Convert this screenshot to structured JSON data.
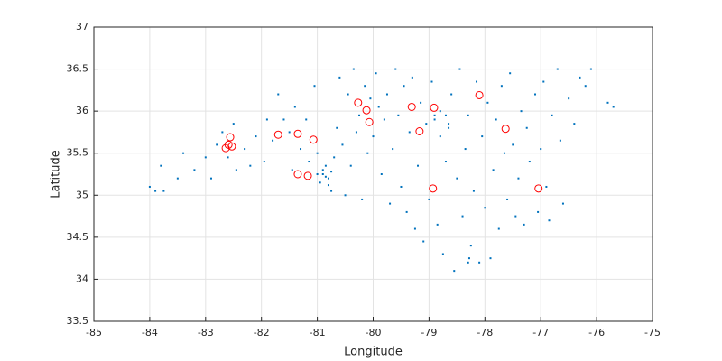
{
  "chart_data": {
    "type": "scatter",
    "xlabel": "Longitude",
    "ylabel": "Latitude",
    "xlim": [
      -85,
      -75
    ],
    "ylim": [
      33.5,
      37
    ],
    "xticks": [
      -85,
      -84,
      -83,
      -82,
      -81,
      -80,
      -79,
      -78,
      -77,
      -76,
      -75
    ],
    "yticks": [
      33.5,
      34,
      34.5,
      35,
      35.5,
      36,
      36.5,
      37
    ],
    "grid": true,
    "series": [
      {
        "color": "#0072bd",
        "marker": "dot",
        "x": [
          -84.0,
          -83.9,
          -83.75,
          -83.8,
          -83.5,
          -83.4,
          -83.2,
          -83.0,
          -82.9,
          -82.8,
          -82.7,
          -82.6,
          -82.5,
          -82.45,
          -82.3,
          -82.2,
          -82.1,
          -81.95,
          -81.9,
          -81.8,
          -81.7,
          -81.6,
          -81.5,
          -81.45,
          -81.4,
          -81.3,
          -81.2,
          -81.15,
          -81.05,
          -81.0,
          -80.95,
          -80.9,
          -80.85,
          -80.8,
          -80.75,
          -80.7,
          -80.65,
          -80.6,
          -80.55,
          -80.5,
          -80.45,
          -80.4,
          -80.35,
          -80.3,
          -80.25,
          -80.2,
          -80.15,
          -80.1,
          -80.05,
          -80.0,
          -79.95,
          -79.9,
          -79.85,
          -79.8,
          -79.75,
          -79.7,
          -79.65,
          -79.6,
          -79.55,
          -79.5,
          -79.45,
          -79.4,
          -79.35,
          -79.3,
          -79.25,
          -79.2,
          -79.15,
          -79.1,
          -79.05,
          -79.0,
          -78.95,
          -78.9,
          -78.85,
          -78.8,
          -78.75,
          -78.7,
          -78.65,
          -78.6,
          -78.55,
          -78.5,
          -78.45,
          -78.4,
          -78.35,
          -78.3,
          -78.25,
          -78.2,
          -78.15,
          -78.1,
          -78.05,
          -78.0,
          -77.95,
          -77.9,
          -77.85,
          -77.8,
          -77.75,
          -77.7,
          -77.65,
          -77.6,
          -77.55,
          -77.5,
          -77.45,
          -77.4,
          -77.35,
          -77.3,
          -77.25,
          -77.2,
          -77.1,
          -77.05,
          -77.0,
          -76.95,
          -76.9,
          -76.85,
          -76.8,
          -76.7,
          -76.65,
          -76.6,
          -76.5,
          -76.4,
          -76.3,
          -76.2,
          -76.1,
          -75.8,
          -75.7,
          -80.85,
          -80.9,
          -80.8,
          -80.75,
          -81.0,
          -78.65,
          -78.9,
          -78.8,
          -78.7,
          -78.3,
          -78.28
        ],
        "values": [
          35.1,
          35.05,
          35.05,
          35.35,
          35.2,
          35.5,
          35.3,
          35.45,
          35.2,
          35.6,
          35.75,
          35.45,
          35.85,
          35.3,
          35.55,
          35.35,
          35.7,
          35.4,
          35.9,
          35.65,
          36.2,
          35.9,
          35.75,
          35.3,
          36.05,
          35.55,
          35.9,
          35.4,
          36.3,
          35.5,
          35.15,
          35.25,
          35.35,
          35.2,
          35.05,
          35.45,
          35.8,
          36.4,
          35.6,
          35.0,
          36.2,
          35.35,
          36.5,
          35.75,
          35.95,
          34.95,
          36.3,
          35.5,
          36.15,
          35.7,
          36.45,
          36.05,
          35.25,
          35.9,
          36.2,
          34.9,
          35.55,
          36.5,
          35.95,
          35.1,
          36.3,
          34.8,
          35.75,
          36.4,
          34.6,
          35.35,
          36.1,
          34.45,
          35.85,
          34.95,
          36.35,
          35.95,
          34.65,
          35.7,
          34.3,
          35.4,
          35.85,
          36.2,
          34.1,
          35.2,
          36.5,
          34.75,
          35.55,
          35.95,
          34.4,
          35.05,
          36.35,
          34.2,
          35.7,
          34.85,
          36.1,
          34.25,
          35.3,
          35.9,
          34.6,
          36.3,
          35.5,
          34.95,
          36.45,
          35.6,
          34.75,
          35.2,
          36.0,
          34.65,
          35.8,
          35.4,
          36.2,
          34.8,
          35.55,
          36.35,
          35.1,
          34.7,
          35.95,
          36.5,
          35.65,
          34.9,
          36.15,
          35.85,
          36.4,
          36.3,
          36.5,
          36.1,
          36.05,
          35.22,
          35.3,
          35.12,
          35.28,
          35.25,
          35.8,
          35.9,
          36.0,
          35.95,
          34.2,
          34.25
        ]
      },
      {
        "color": "#ff0000",
        "marker": "circle",
        "x": [
          -82.56,
          -82.59,
          -82.64,
          -82.53,
          -81.7,
          -81.35,
          -81.07,
          -81.35,
          -81.17,
          -80.27,
          -80.12,
          -80.07,
          -79.31,
          -78.91,
          -79.17,
          -78.1,
          -77.63,
          -78.93,
          -77.04
        ],
        "values": [
          35.69,
          35.6,
          35.56,
          35.58,
          35.72,
          35.73,
          35.66,
          35.25,
          35.23,
          36.1,
          36.01,
          35.87,
          36.05,
          36.04,
          35.76,
          36.19,
          35.79,
          35.08,
          35.08
        ]
      }
    ]
  }
}
